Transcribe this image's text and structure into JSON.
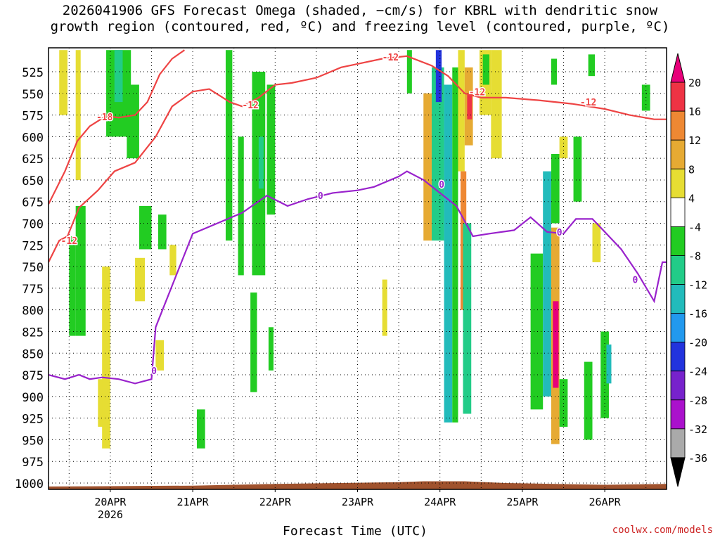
{
  "header": {
    "title_line1": "2026041906 GFS Forecast Omega (shaded, −cm/s) for KBRL with dendritic snow",
    "title_line2": "growth region (contoured, red, ºC) and freezing level (contoured, purple, ºC)"
  },
  "credit": "coolwx.com/models",
  "chart_data": {
    "type": "heatmap",
    "title": "2026041906 GFS Forecast Omega (shaded, −cm/s) for KBRL with dendritic snow growth region (contoured, red, ºC) and freezing level (contoured, purple, ºC)",
    "xlabel": "Forecast Time (UTC)",
    "ylabel": "",
    "x_ticks": [
      "20APR",
      "21APR",
      "22APR",
      "23APR",
      "24APR",
      "25APR",
      "26APR"
    ],
    "x_sublabel": "2026",
    "x_range_days": [
      19.25,
      26.75
    ],
    "y_ticks": [
      525,
      550,
      575,
      600,
      625,
      650,
      675,
      700,
      725,
      750,
      775,
      800,
      825,
      850,
      875,
      900,
      925,
      950,
      975,
      1000
    ],
    "y_range_hpa": [
      500,
      1010
    ],
    "grid": true,
    "colorbar": {
      "labels": [
        20,
        16,
        12,
        8,
        4,
        -4,
        -8,
        -12,
        -16,
        -20,
        -24,
        -28,
        -32,
        -36
      ],
      "bins": [
        {
          "range": "> 20",
          "color": "#e8007a"
        },
        {
          "range": "16 to 20",
          "color": "#ee3344"
        },
        {
          "range": "12 to 16",
          "color": "#ee8833"
        },
        {
          "range": "8 to 12",
          "color": "#e6aa33"
        },
        {
          "range": "4 to 8",
          "color": "#e6dd33"
        },
        {
          "range": "-4 to 4",
          "color": "#ffffff"
        },
        {
          "range": "-8 to -4",
          "color": "#22cc22"
        },
        {
          "range": "-12 to -8",
          "color": "#22cc88"
        },
        {
          "range": "-16 to -12",
          "color": "#22bbbb"
        },
        {
          "range": "-20 to -16",
          "color": "#2299ee"
        },
        {
          "range": "-24 to -20",
          "color": "#2233dd"
        },
        {
          "range": "-28 to -24",
          "color": "#7722cc"
        },
        {
          "range": "-32 to -28",
          "color": "#aa11cc"
        },
        {
          "range": "-36 to -32",
          "color": "#aaaaaa"
        },
        {
          "range": "< -36",
          "color": "#000000"
        }
      ]
    },
    "contours": [
      {
        "label": "-18",
        "color": "#ee4444",
        "points": [
          [
            19.25,
            678
          ],
          [
            19.45,
            640
          ],
          [
            19.6,
            605
          ],
          [
            19.75,
            588
          ],
          [
            19.95,
            576
          ],
          [
            20.1,
            578
          ],
          [
            20.3,
            575
          ],
          [
            20.45,
            560
          ],
          [
            20.6,
            528
          ],
          [
            20.75,
            510
          ],
          [
            20.9,
            500
          ]
        ]
      },
      {
        "label": "-12",
        "color": "#ee4444",
        "points": [
          [
            19.25,
            745
          ],
          [
            19.38,
            720
          ],
          [
            19.48,
            715
          ],
          [
            19.62,
            682
          ],
          [
            19.85,
            662
          ],
          [
            20.05,
            640
          ],
          [
            20.3,
            630
          ],
          [
            20.55,
            600
          ],
          [
            20.75,
            565
          ],
          [
            21.0,
            548
          ],
          [
            21.2,
            545
          ],
          [
            21.45,
            560
          ],
          [
            21.6,
            565
          ],
          [
            21.8,
            555
          ],
          [
            22.0,
            540
          ],
          [
            22.2,
            538
          ],
          [
            22.5,
            532
          ],
          [
            22.8,
            520
          ],
          [
            23.0,
            516
          ],
          [
            23.3,
            510
          ],
          [
            23.6,
            507
          ],
          [
            23.9,
            518
          ],
          [
            24.1,
            530
          ],
          [
            24.3,
            550
          ],
          [
            24.5,
            555
          ],
          [
            24.8,
            555
          ],
          [
            25.2,
            558
          ],
          [
            25.6,
            562
          ],
          [
            26.0,
            568
          ],
          [
            26.3,
            575
          ],
          [
            26.6,
            580
          ],
          [
            26.75,
            580
          ]
        ]
      },
      {
        "label": "0",
        "color": "#9922cc",
        "points": [
          [
            19.25,
            875
          ],
          [
            19.45,
            880
          ],
          [
            19.62,
            875
          ],
          [
            19.75,
            880
          ],
          [
            19.9,
            878
          ],
          [
            20.1,
            880
          ],
          [
            20.3,
            885
          ],
          [
            20.5,
            880
          ],
          [
            20.55,
            820
          ],
          [
            20.8,
            760
          ],
          [
            21.0,
            712
          ],
          [
            21.3,
            700
          ],
          [
            21.6,
            688
          ],
          [
            21.9,
            668
          ],
          [
            22.15,
            680
          ],
          [
            22.4,
            672
          ],
          [
            22.7,
            665
          ],
          [
            23.0,
            662
          ],
          [
            23.2,
            658
          ],
          [
            23.5,
            646
          ],
          [
            23.6,
            640
          ],
          [
            23.8,
            650
          ],
          [
            24.0,
            665
          ],
          [
            24.2,
            680
          ],
          [
            24.4,
            715
          ],
          [
            24.6,
            712
          ],
          [
            24.9,
            708
          ],
          [
            25.1,
            693
          ],
          [
            25.3,
            710
          ],
          [
            25.5,
            712
          ],
          [
            25.65,
            695
          ],
          [
            25.85,
            695
          ],
          [
            26.0,
            710
          ],
          [
            26.2,
            730
          ],
          [
            26.4,
            758
          ],
          [
            26.6,
            790
          ],
          [
            26.7,
            745
          ],
          [
            26.75,
            745
          ]
        ]
      }
    ],
    "omega_cells": [
      {
        "x0": 19.38,
        "x1": 19.48,
        "p0": 500,
        "p1": 575,
        "v": 6
      },
      {
        "x0": 19.58,
        "x1": 19.64,
        "p0": 500,
        "p1": 650,
        "v": 5
      },
      {
        "x0": 19.5,
        "x1": 19.58,
        "p0": 715,
        "p1": 830,
        "v": -6
      },
      {
        "x0": 19.58,
        "x1": 19.7,
        "p0": 680,
        "p1": 830,
        "v": -7
      },
      {
        "x0": 19.85,
        "x1": 19.95,
        "p0": 880,
        "p1": 935,
        "v": 5
      },
      {
        "x0": 19.9,
        "x1": 20.0,
        "p0": 750,
        "p1": 960,
        "v": 5
      },
      {
        "x0": 19.95,
        "x1": 20.25,
        "p0": 500,
        "p1": 600,
        "v": -6
      },
      {
        "x0": 20.2,
        "x1": 20.35,
        "p0": 540,
        "p1": 625,
        "v": -6
      },
      {
        "x0": 20.05,
        "x1": 20.15,
        "p0": 500,
        "p1": 560,
        "v": -10
      },
      {
        "x0": 20.3,
        "x1": 20.42,
        "p0": 740,
        "p1": 790,
        "v": 5
      },
      {
        "x0": 20.35,
        "x1": 20.5,
        "p0": 680,
        "p1": 730,
        "v": -6
      },
      {
        "x0": 20.55,
        "x1": 20.65,
        "p0": 835,
        "p1": 870,
        "v": 5
      },
      {
        "x0": 20.58,
        "x1": 20.68,
        "p0": 690,
        "p1": 730,
        "v": -6
      },
      {
        "x0": 20.72,
        "x1": 20.8,
        "p0": 725,
        "p1": 760,
        "v": 5
      },
      {
        "x0": 21.05,
        "x1": 21.15,
        "p0": 915,
        "p1": 960,
        "v": -6
      },
      {
        "x0": 21.4,
        "x1": 21.48,
        "p0": 500,
        "p1": 720,
        "v": -6
      },
      {
        "x0": 21.55,
        "x1": 21.62,
        "p0": 600,
        "p1": 760,
        "v": -6
      },
      {
        "x0": 21.72,
        "x1": 21.88,
        "p0": 525,
        "p1": 760,
        "v": -7
      },
      {
        "x0": 21.8,
        "x1": 21.86,
        "p0": 600,
        "p1": 660,
        "v": -10
      },
      {
        "x0": 21.9,
        "x1": 22.0,
        "p0": 540,
        "p1": 690,
        "v": -6
      },
      {
        "x0": 21.7,
        "x1": 21.78,
        "p0": 780,
        "p1": 895,
        "v": -7
      },
      {
        "x0": 21.92,
        "x1": 21.98,
        "p0": 820,
        "p1": 870,
        "v": -6
      },
      {
        "x0": 23.3,
        "x1": 23.36,
        "p0": 765,
        "p1": 830,
        "v": 5
      },
      {
        "x0": 23.6,
        "x1": 23.66,
        "p0": 500,
        "p1": 550,
        "v": -6
      },
      {
        "x0": 23.8,
        "x1": 23.9,
        "p0": 550,
        "p1": 720,
        "v": 12
      },
      {
        "x0": 23.9,
        "x1": 24.05,
        "p0": 520,
        "p1": 720,
        "v": -10
      },
      {
        "x0": 23.95,
        "x1": 24.02,
        "p0": 500,
        "p1": 560,
        "v": -22
      },
      {
        "x0": 24.05,
        "x1": 24.15,
        "p0": 540,
        "p1": 930,
        "v": -12
      },
      {
        "x0": 24.15,
        "x1": 24.22,
        "p0": 520,
        "p1": 930,
        "v": -7
      },
      {
        "x0": 24.22,
        "x1": 24.3,
        "p0": 500,
        "p1": 640,
        "v": 6
      },
      {
        "x0": 24.25,
        "x1": 24.32,
        "p0": 640,
        "p1": 800,
        "v": 16
      },
      {
        "x0": 24.3,
        "x1": 24.4,
        "p0": 520,
        "p1": 610,
        "v": 12
      },
      {
        "x0": 24.33,
        "x1": 24.39,
        "p0": 550,
        "p1": 580,
        "v": 20
      },
      {
        "x0": 24.28,
        "x1": 24.38,
        "p0": 700,
        "p1": 920,
        "v": -8
      },
      {
        "x0": 24.48,
        "x1": 24.62,
        "p0": 500,
        "p1": 575,
        "v": 6
      },
      {
        "x0": 24.62,
        "x1": 24.75,
        "p0": 500,
        "p1": 625,
        "v": 6
      },
      {
        "x0": 24.52,
        "x1": 24.6,
        "p0": 505,
        "p1": 540,
        "v": -6
      },
      {
        "x0": 25.1,
        "x1": 25.25,
        "p0": 735,
        "p1": 915,
        "v": -7
      },
      {
        "x0": 25.25,
        "x1": 25.35,
        "p0": 640,
        "p1": 900,
        "v": -12
      },
      {
        "x0": 25.35,
        "x1": 25.45,
        "p0": 620,
        "p1": 700,
        "v": -7
      },
      {
        "x0": 25.35,
        "x1": 25.45,
        "p0": 705,
        "p1": 955,
        "v": 12
      },
      {
        "x0": 25.37,
        "x1": 25.44,
        "p0": 790,
        "p1": 890,
        "v": 22
      },
      {
        "x0": 25.45,
        "x1": 25.55,
        "p0": 880,
        "p1": 935,
        "v": -7
      },
      {
        "x0": 25.45,
        "x1": 25.55,
        "p0": 600,
        "p1": 625,
        "v": 6
      },
      {
        "x0": 25.62,
        "x1": 25.72,
        "p0": 600,
        "p1": 675,
        "v": -7
      },
      {
        "x0": 25.75,
        "x1": 25.85,
        "p0": 860,
        "p1": 950,
        "v": -7
      },
      {
        "x0": 25.85,
        "x1": 25.95,
        "p0": 700,
        "p1": 745,
        "v": 5
      },
      {
        "x0": 25.95,
        "x1": 26.05,
        "p0": 825,
        "p1": 925,
        "v": -7
      },
      {
        "x0": 26.02,
        "x1": 26.08,
        "p0": 840,
        "p1": 885,
        "v": -12
      },
      {
        "x0": 26.45,
        "x1": 26.55,
        "p0": 540,
        "p1": 570,
        "v": -6
      },
      {
        "x0": 25.35,
        "x1": 25.42,
        "p0": 510,
        "p1": 540,
        "v": -6
      },
      {
        "x0": 25.8,
        "x1": 25.88,
        "p0": 505,
        "p1": 530,
        "v": -6
      }
    ],
    "terrain_color": "#a0522d"
  }
}
